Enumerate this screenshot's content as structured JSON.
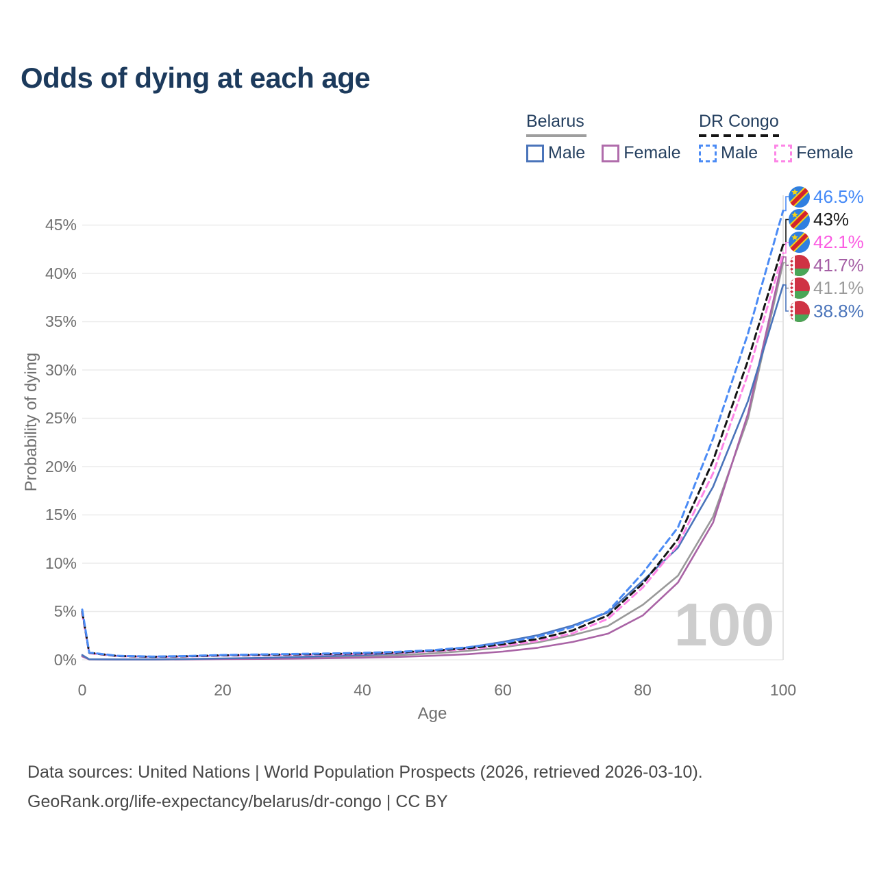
{
  "title": "Odds of dying at each age",
  "legend": {
    "groups": [
      {
        "label": "Belarus",
        "line_style": "solid",
        "underline_color": "#9e9e9e",
        "items": [
          {
            "label": "Male",
            "color": "#4a74ba",
            "checked": false
          },
          {
            "label": "Female",
            "color": "#b06cab",
            "checked": false
          }
        ]
      },
      {
        "label": "DR Congo",
        "line_style": "dashed",
        "underline_color": "#151515",
        "items": [
          {
            "label": "Male",
            "color": "#4b8bf5",
            "checked": false
          },
          {
            "label": "Female",
            "color": "#fd85e6",
            "checked": false
          }
        ]
      }
    ]
  },
  "chart_data": {
    "type": "line",
    "title": "Odds of dying at each age",
    "xlabel": "Age",
    "ylabel": "Probability of dying",
    "xlim": [
      0,
      100
    ],
    "ylim_percent": [
      0,
      47
    ],
    "grid": "horizontal",
    "legend_position": "top-right",
    "hover_age": "100",
    "xtick_labels": [
      "0",
      "20",
      "40",
      "60",
      "80",
      "100"
    ],
    "ytick_labels": [
      "0%",
      "5%",
      "10%",
      "15%",
      "20%",
      "25%",
      "30%",
      "35%",
      "40%",
      "45%"
    ],
    "x": [
      0,
      1,
      5,
      10,
      15,
      20,
      25,
      30,
      35,
      40,
      45,
      50,
      55,
      60,
      65,
      70,
      75,
      80,
      85,
      90,
      95,
      100
    ],
    "series": [
      {
        "name": "DR Congo — Male",
        "slug": "dr-congo-male",
        "country": "DR Congo",
        "sex": "Male",
        "color": "#4b8bf5",
        "dash": true,
        "flag": "cd",
        "end_label": "46.5%",
        "label_color": "#4489f7",
        "values": [
          5.2,
          0.75,
          0.42,
          0.33,
          0.4,
          0.5,
          0.55,
          0.6,
          0.65,
          0.72,
          0.82,
          1.0,
          1.3,
          1.75,
          2.4,
          3.4,
          5.0,
          9.0,
          13.7,
          22.9,
          33.8,
          46.5
        ]
      },
      {
        "name": "DR Congo — Both sexes",
        "slug": "dr-congo-both-sexes",
        "country": "DR Congo",
        "sex": "Both sexes",
        "color": "#141414",
        "dash": true,
        "flag": "cd",
        "end_label": "43%",
        "label_color": "#1c1c1c",
        "values": [
          5.0,
          0.72,
          0.4,
          0.31,
          0.37,
          0.46,
          0.51,
          0.56,
          0.61,
          0.67,
          0.77,
          0.94,
          1.2,
          1.6,
          2.15,
          3.05,
          4.6,
          7.9,
          12.5,
          20.6,
          31.0,
          43.0
        ]
      },
      {
        "name": "DR Congo — Female",
        "slug": "dr-congo-female",
        "country": "DR Congo",
        "sex": "Female",
        "color": "#fd85e6",
        "dash": true,
        "flag": "cd",
        "end_label": "42.1%",
        "label_color": "#fb5ce2",
        "values": [
          4.8,
          0.69,
          0.38,
          0.3,
          0.35,
          0.43,
          0.47,
          0.52,
          0.57,
          0.62,
          0.72,
          0.88,
          1.1,
          1.45,
          1.95,
          2.75,
          4.25,
          7.5,
          11.9,
          19.3,
          29.6,
          42.1
        ]
      },
      {
        "name": "Belarus — Female",
        "slug": "belarus-female",
        "country": "Belarus",
        "sex": "Female",
        "color": "#a963a5",
        "dash": false,
        "flag": "by",
        "end_label": "41.7%",
        "label_color": "#a55fa5",
        "values": [
          0.35,
          0.04,
          0.02,
          0.02,
          0.04,
          0.07,
          0.09,
          0.12,
          0.16,
          0.22,
          0.3,
          0.42,
          0.58,
          0.85,
          1.25,
          1.85,
          2.7,
          4.6,
          8.0,
          14.2,
          25.5,
          41.7
        ]
      },
      {
        "name": "Belarus — Both sexes",
        "slug": "belarus-both-sexes",
        "country": "Belarus",
        "sex": "Both sexes",
        "color": "#999999",
        "dash": false,
        "flag": "by",
        "end_label": "41.1%",
        "label_color": "#9b9b9b",
        "values": [
          0.42,
          0.05,
          0.03,
          0.03,
          0.06,
          0.1,
          0.14,
          0.2,
          0.28,
          0.36,
          0.48,
          0.66,
          0.92,
          1.3,
          1.8,
          2.55,
          3.5,
          5.7,
          8.7,
          14.8,
          25.0,
          41.1
        ]
      },
      {
        "name": "Belarus — Male",
        "slug": "belarus-male",
        "country": "Belarus",
        "sex": "Male",
        "color": "#4a74ba",
        "dash": false,
        "flag": "by",
        "end_label": "38.8%",
        "label_color": "#4a74ba",
        "values": [
          0.5,
          0.06,
          0.04,
          0.04,
          0.08,
          0.14,
          0.19,
          0.28,
          0.38,
          0.5,
          0.66,
          0.92,
          1.28,
          1.85,
          2.55,
          3.55,
          4.9,
          8.2,
          11.6,
          17.9,
          26.8,
          38.8
        ]
      }
    ]
  },
  "watermark": "100",
  "footer": {
    "line1": "Data sources: United Nations | World Population Prospects (2026, retrieved 2026-03-10).",
    "line2": "GeoRank.org/life-expectancy/belarus/dr-congo | CC BY"
  }
}
